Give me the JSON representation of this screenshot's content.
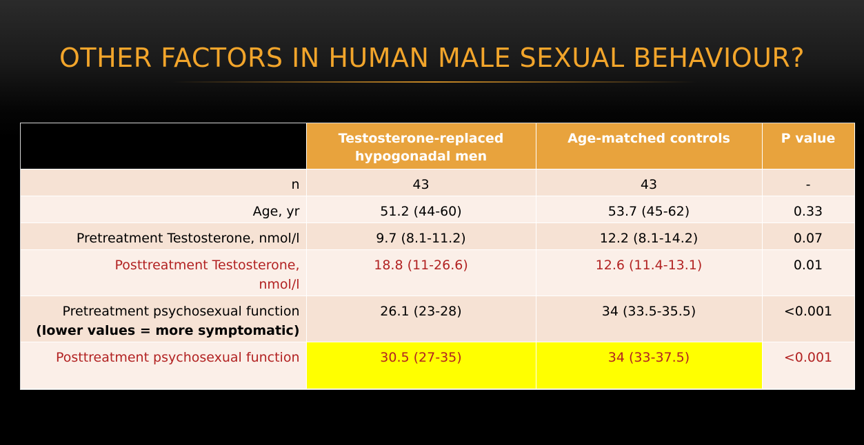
{
  "slide": {
    "title": "OTHER FACTORS IN HUMAN MALE SEXUAL BEHAVIOUR?"
  },
  "table": {
    "headers": [
      "",
      "Testosterone-replaced hypogonadal men",
      "Age-matched controls",
      "P value"
    ],
    "rows": [
      {
        "label": "n",
        "treated": "43",
        "controls": "43",
        "p": "-"
      },
      {
        "label": "Age, yr",
        "treated": "51.2 (44-60)",
        "controls": "53.7 (45-62)",
        "p": "0.33"
      },
      {
        "label": "Pretreatment Testosterone, nmol/l",
        "treated": "9.7 (8.1-11.2)",
        "controls": "12.2 (8.1-14.2)",
        "p": "0.07"
      },
      {
        "label_line1": "Posttreatment Testosterone,",
        "label_line2": "nmol/l",
        "treated": "18.8 (11-26.6)",
        "controls": "12.6 (11.4-13.1)",
        "p": "0.01"
      },
      {
        "label_line1": "Pretreatment psychosexual function",
        "label_line2": "(lower values = more symptomatic)",
        "treated": "26.1 (23-28)",
        "controls": "34 (33.5-35.5)",
        "p": "<0.001"
      },
      {
        "label": "Posttreatment psychosexual function",
        "treated": "30.5 (27-35)",
        "controls": "34 (33-37.5)",
        "p": "<0.001"
      }
    ]
  },
  "colors": {
    "title": "#f2a52b",
    "header_bg": "#e8a33d",
    "highlight": "#ffff00",
    "emphasis_text": "#b22222"
  }
}
